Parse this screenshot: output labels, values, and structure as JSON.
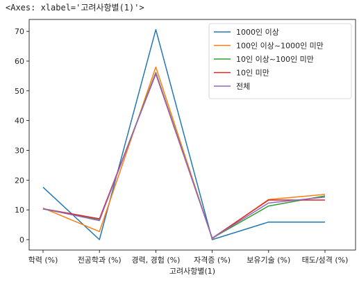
{
  "header": {
    "axes_repr": "<Axes: xlabel='고려사항별(1)'>"
  },
  "chart_data": {
    "type": "line",
    "categories": [
      "학력 (%)",
      "전공학과 (%)",
      "경력, 경험 (%)",
      "자격증 (%)",
      "보유기술 (%)",
      "태도/성격 (%)"
    ],
    "xlabel": "고려사항별(1)",
    "ylabel": "",
    "ylim": [
      -3.5,
      74
    ],
    "yticks": [
      0,
      10,
      20,
      30,
      40,
      50,
      60,
      70
    ],
    "grid": false,
    "legend_position": "upper-right",
    "series": [
      {
        "name": "1000인 이상",
        "color": "#1f77b4",
        "values": [
          17.6,
          0.0,
          70.6,
          0.0,
          5.9,
          5.9
        ]
      },
      {
        "name": "100인 이상~1000인 미만",
        "color": "#ff7f0e",
        "values": [
          10.6,
          2.7,
          58.0,
          0.3,
          13.5,
          15.2
        ]
      },
      {
        "name": "10인 이상~100인 미만",
        "color": "#2ca02c",
        "values": [
          10.3,
          6.6,
          56.2,
          0.5,
          11.3,
          14.7
        ]
      },
      {
        "name": "10인 미만",
        "color": "#d62728",
        "values": [
          10.4,
          7.0,
          55.7,
          0.5,
          13.3,
          13.3
        ]
      },
      {
        "name": "전체",
        "color": "#9467bd",
        "values": [
          10.4,
          6.4,
          56.0,
          0.5,
          12.3,
          14.3
        ]
      }
    ]
  }
}
